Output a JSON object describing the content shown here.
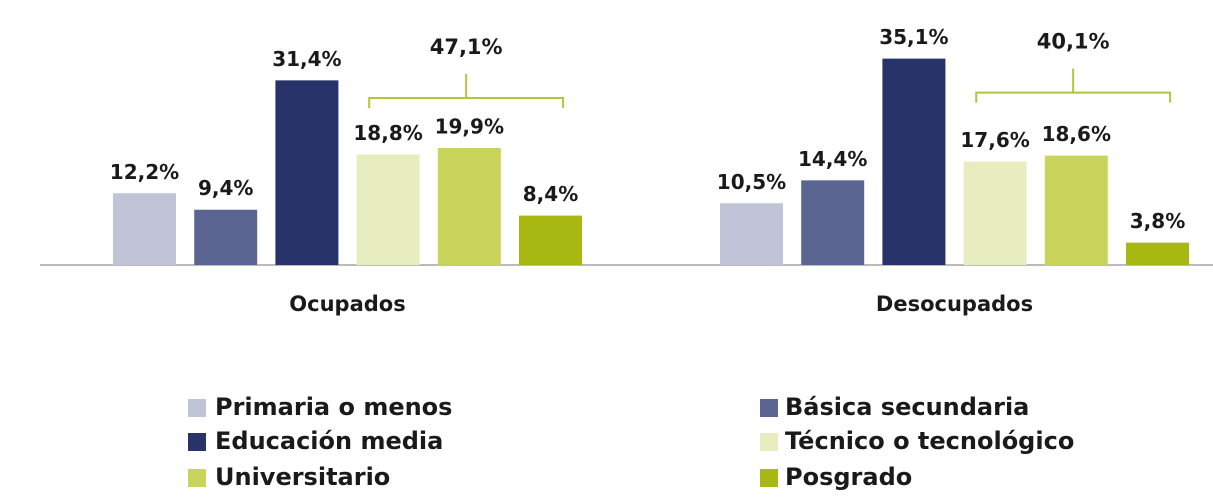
{
  "chart_data": {
    "type": "bar",
    "categories": [
      "Ocupados",
      "Desocupados"
    ],
    "series": [
      {
        "name": "Primaria o menos",
        "color": "#c0c4d6",
        "values": [
          12.2,
          10.5
        ],
        "value_labels": [
          "12,2%",
          "10,5%"
        ]
      },
      {
        "name": "Básica secundaria",
        "color": "#5a6591",
        "values": [
          9.4,
          14.4
        ],
        "value_labels": [
          "9,4%",
          "14,4%"
        ]
      },
      {
        "name": "Educación media",
        "color": "#283469",
        "values": [
          31.4,
          35.1
        ],
        "value_labels": [
          "31,4%",
          "35,1%"
        ]
      },
      {
        "name": "Técnico o tecnológico",
        "color": "#e8edc0",
        "values": [
          18.8,
          17.6
        ],
        "value_labels": [
          "18,8%",
          "17,6%"
        ]
      },
      {
        "name": "Universitario",
        "color": "#c8d45a",
        "values": [
          19.9,
          18.6
        ],
        "value_labels": [
          "19,9%",
          "18,6%"
        ]
      },
      {
        "name": "Posgrado",
        "color": "#a8b812",
        "values": [
          8.4,
          3.8
        ],
        "value_labels": [
          "8,4%",
          "3,8%"
        ]
      }
    ],
    "annotations": [
      "47,1%",
      "40,1%"
    ],
    "annotation_color": "#b5c43a"
  }
}
